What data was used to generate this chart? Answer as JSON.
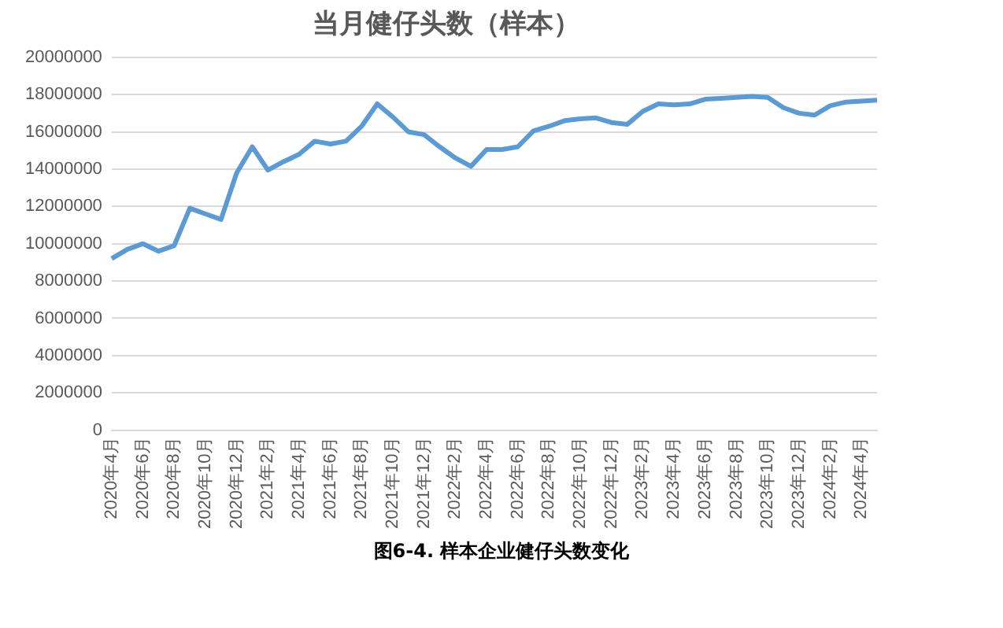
{
  "chart_data": {
    "type": "line",
    "title": "当月健仔头数（样本）",
    "categories": [
      "2020年4月",
      null,
      "2020年6月",
      null,
      "2020年8月",
      null,
      "2020年10月",
      null,
      "2020年12月",
      null,
      "2021年2月",
      null,
      "2021年4月",
      null,
      "2021年6月",
      null,
      "2021年8月",
      null,
      "2021年10月",
      null,
      "2021年12月",
      null,
      "2022年2月",
      null,
      "2022年4月",
      null,
      "2022年6月",
      null,
      "2022年8月",
      null,
      "2022年10月",
      null,
      "2022年12月",
      null,
      "2023年2月",
      null,
      "2023年4月",
      null,
      "2023年6月",
      null,
      "2023年8月",
      null,
      "2023年10月",
      null,
      "2023年12月",
      null,
      "2024年2月",
      null,
      "2024年4月",
      null
    ],
    "series": [
      {
        "color": "#5b9bd5",
        "values": [
          9200000,
          9700000,
          10000000,
          9600000,
          9900000,
          11900000,
          11600000,
          11300000,
          13800000,
          15200000,
          13950000,
          14400000,
          14800000,
          15500000,
          15350000,
          15500000,
          16300000,
          17500000,
          16800000,
          16000000,
          15850000,
          15200000,
          14600000,
          14150000,
          15050000,
          15050000,
          15200000,
          16050000,
          16300000,
          16600000,
          16700000,
          16750000,
          16500000,
          16400000,
          17100000,
          17500000,
          17450000,
          17500000,
          17750000,
          17800000,
          17850000,
          17900000,
          17850000,
          17300000,
          17000000,
          16900000,
          17400000,
          17600000,
          17650000,
          17700000
        ]
      }
    ],
    "ylim": [
      0,
      20000000
    ],
    "yticks": [
      0,
      2000000,
      4000000,
      6000000,
      8000000,
      10000000,
      12000000,
      14000000,
      16000000,
      18000000,
      20000000
    ],
    "grid": "y",
    "legend": false,
    "marker": "none",
    "line_style": "solid",
    "annotations": [
      "图6-4. 样本企业健仔头数变化"
    ]
  }
}
